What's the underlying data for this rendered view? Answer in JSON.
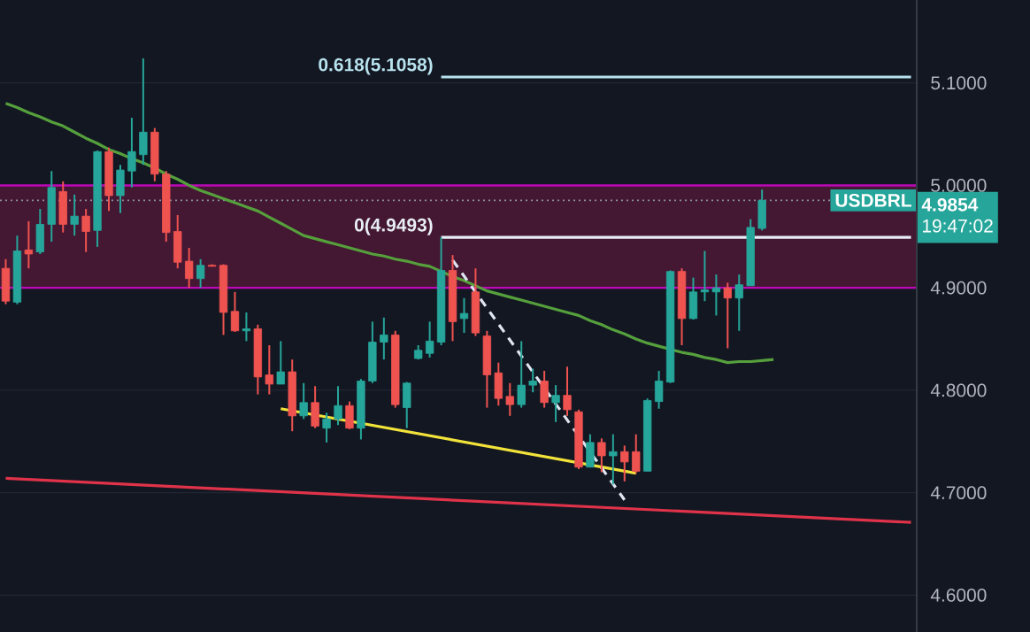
{
  "chart_data": {
    "type": "candlestick",
    "categories": [
      null,
      null,
      null,
      null,
      null,
      null,
      null,
      null,
      null,
      null,
      null,
      null,
      null,
      null,
      null,
      null,
      null,
      null,
      null,
      null,
      null,
      null,
      null,
      null,
      null,
      null,
      null,
      null,
      null,
      null,
      null,
      null,
      null,
      null,
      null,
      null,
      null,
      null,
      null,
      null,
      null,
      null,
      null,
      null,
      null,
      null,
      null,
      null,
      null,
      null,
      null,
      null,
      null,
      null,
      null,
      null,
      null,
      null,
      null,
      null,
      null,
      null,
      null,
      null,
      null,
      null,
      null,
      null,
      null,
      null,
      null,
      null,
      null,
      null,
      null,
      null,
      null,
      null,
      null,
      null
    ],
    "ohlc": [
      [
        4.919,
        4.928,
        4.884,
        4.887
      ],
      [
        4.886,
        4.951,
        4.884,
        4.936
      ],
      [
        4.937,
        4.965,
        4.919,
        4.933
      ],
      [
        4.935,
        4.977,
        4.933,
        4.962
      ],
      [
        4.962,
        5.014,
        4.945,
        4.998
      ],
      [
        4.994,
        5.004,
        4.954,
        4.962
      ],
      [
        4.962,
        4.991,
        4.951,
        4.97
      ],
      [
        4.97,
        4.977,
        4.935,
        4.955
      ],
      [
        4.956,
        5.034,
        4.94,
        5.033
      ],
      [
        5.033,
        5.037,
        4.975,
        4.99
      ],
      [
        4.99,
        5.02,
        4.973,
        5.015
      ],
      [
        5.014,
        5.066,
        4.998,
        5.033
      ],
      [
        5.03,
        5.124,
        5.02,
        5.052
      ],
      [
        5.052,
        5.056,
        5.004,
        5.011
      ],
      [
        5.011,
        5.014,
        4.945,
        4.954
      ],
      [
        4.955,
        4.971,
        4.919,
        4.925
      ],
      [
        4.926,
        4.939,
        4.9,
        4.909
      ],
      [
        4.909,
        4.928,
        4.9,
        4.922
      ],
      [
        4.922,
        4.923,
        4.921,
        4.921
      ],
      [
        4.922,
        4.923,
        4.854,
        4.876
      ],
      [
        4.877,
        4.896,
        4.857,
        4.858
      ],
      [
        4.858,
        4.876,
        4.848,
        4.86
      ],
      [
        4.86,
        4.864,
        4.796,
        4.813
      ],
      [
        4.815,
        4.844,
        4.796,
        4.806
      ],
      [
        4.806,
        4.848,
        4.806,
        4.818
      ],
      [
        4.818,
        4.83,
        4.76,
        4.775
      ],
      [
        4.775,
        4.807,
        4.772,
        4.788
      ],
      [
        4.788,
        4.804,
        4.763,
        4.765
      ],
      [
        4.763,
        4.778,
        4.749,
        4.772
      ],
      [
        4.772,
        4.804,
        4.766,
        4.785
      ],
      [
        4.785,
        4.789,
        4.762,
        4.763
      ],
      [
        4.763,
        4.811,
        4.752,
        4.809
      ],
      [
        4.809,
        4.867,
        4.807,
        4.847
      ],
      [
        4.847,
        4.871,
        4.83,
        4.854
      ],
      [
        4.854,
        4.858,
        4.783,
        4.786
      ],
      [
        4.783,
        4.808,
        4.763,
        4.807
      ],
      [
        4.831,
        4.844,
        4.83,
        4.839
      ],
      [
        4.836,
        4.867,
        4.832,
        4.848
      ],
      [
        4.847,
        4.9493,
        4.844,
        4.917
      ],
      [
        4.917,
        4.932,
        4.848,
        4.867
      ],
      [
        4.87,
        4.89,
        4.856,
        4.875
      ],
      [
        4.896,
        4.919,
        4.853,
        4.856
      ],
      [
        4.853,
        4.858,
        4.783,
        4.815
      ],
      [
        4.817,
        4.827,
        4.785,
        4.792
      ],
      [
        4.794,
        4.807,
        4.775,
        4.786
      ],
      [
        4.786,
        4.848,
        4.783,
        4.805
      ],
      [
        4.805,
        4.821,
        4.798,
        4.809
      ],
      [
        4.809,
        4.819,
        4.783,
        4.788
      ],
      [
        4.788,
        4.805,
        4.769,
        4.795
      ],
      [
        4.795,
        4.823,
        4.775,
        4.781
      ],
      [
        4.779,
        4.781,
        4.723,
        4.725
      ],
      [
        4.725,
        4.757,
        4.725,
        4.749
      ],
      [
        4.749,
        4.753,
        4.72,
        4.736
      ],
      [
        4.736,
        4.757,
        4.708,
        4.74
      ],
      [
        4.74,
        4.746,
        4.711,
        4.73
      ],
      [
        4.74,
        4.757,
        4.719,
        4.721
      ],
      [
        4.721,
        4.792,
        4.721,
        4.79
      ],
      [
        4.789,
        4.819,
        4.782,
        4.809
      ],
      [
        4.808,
        4.917,
        4.807,
        4.916
      ],
      [
        4.916,
        4.919,
        4.844,
        4.87
      ],
      [
        4.87,
        4.91,
        4.869,
        4.896
      ],
      [
        4.896,
        4.936,
        4.887,
        4.898
      ],
      [
        4.896,
        4.913,
        4.873,
        4.9
      ],
      [
        4.9,
        4.905,
        4.841,
        4.89
      ],
      [
        4.89,
        4.913,
        4.858,
        4.903
      ],
      [
        4.902,
        4.967,
        4.902,
        4.959
      ],
      [
        4.958,
        4.996,
        4.956,
        4.9854
      ],
      null,
      null,
      null,
      null,
      null,
      null,
      null,
      null,
      null,
      null,
      null,
      null,
      null
    ],
    "series": [
      {
        "type": "line",
        "color": "#55a03c",
        "values": [
          5.08,
          5.076,
          5.071,
          5.067,
          5.062,
          5.058,
          5.052,
          5.046,
          5.041,
          5.035,
          5.031,
          5.026,
          5.022,
          5.017,
          5.011,
          5.006,
          5.0,
          4.995,
          4.991,
          4.987,
          4.983,
          4.979,
          4.975,
          4.969,
          4.963,
          4.957,
          4.951,
          4.948,
          4.945,
          4.942,
          4.939,
          4.936,
          4.933,
          4.931,
          4.928,
          4.926,
          4.923,
          4.921,
          4.916,
          4.911,
          4.907,
          4.902,
          4.897,
          4.894,
          4.891,
          4.888,
          4.885,
          4.882,
          4.879,
          4.876,
          4.873,
          4.868,
          4.864,
          4.859,
          4.855,
          4.85,
          4.846,
          4.843,
          4.84,
          4.837,
          4.835,
          4.832,
          4.83,
          4.827,
          4.828,
          4.828,
          4.829,
          4.83,
          null,
          null,
          null,
          null,
          null,
          null,
          null,
          null,
          null,
          null,
          null,
          null
        ]
      },
      {
        "type": "line",
        "color": "#f2e33a",
        "values": [
          null,
          null,
          null,
          null,
          null,
          null,
          null,
          null,
          null,
          null,
          null,
          null,
          null,
          null,
          null,
          null,
          null,
          null,
          null,
          null,
          null,
          null,
          null,
          null,
          4.782,
          null,
          null,
          null,
          null,
          null,
          null,
          null,
          null,
          null,
          null,
          null,
          null,
          null,
          null,
          null,
          null,
          null,
          null,
          null,
          null,
          null,
          null,
          null,
          null,
          null,
          null,
          null,
          null,
          null,
          null,
          4.719,
          null,
          null,
          null,
          null,
          null,
          null,
          null,
          null,
          null,
          null,
          null,
          null,
          null,
          null,
          null,
          null,
          null,
          null,
          null,
          null,
          null,
          null,
          null,
          null
        ]
      },
      {
        "type": "line",
        "color": "#dfe6f2",
        "line_style": "dashed",
        "values": [
          null,
          null,
          null,
          null,
          null,
          null,
          null,
          null,
          null,
          null,
          null,
          null,
          null,
          null,
          null,
          null,
          null,
          null,
          null,
          null,
          null,
          null,
          null,
          null,
          null,
          null,
          null,
          null,
          null,
          null,
          null,
          null,
          null,
          null,
          null,
          null,
          null,
          null,
          null,
          4.927,
          null,
          null,
          null,
          null,
          null,
          null,
          null,
          null,
          null,
          null,
          null,
          null,
          null,
          null,
          4.693,
          null,
          null,
          null,
          null,
          null,
          null,
          null,
          null,
          null,
          null,
          null,
          null,
          null,
          null,
          null,
          null,
          null,
          null,
          null,
          null,
          null,
          null,
          null,
          null,
          null
        ]
      },
      {
        "type": "line",
        "color": "#e0334a",
        "values": [
          4.714,
          null,
          null,
          null,
          null,
          null,
          null,
          null,
          null,
          null,
          null,
          null,
          null,
          null,
          null,
          null,
          null,
          null,
          null,
          null,
          null,
          null,
          null,
          null,
          null,
          null,
          null,
          null,
          null,
          null,
          null,
          null,
          null,
          null,
          null,
          null,
          null,
          null,
          null,
          null,
          null,
          null,
          null,
          null,
          null,
          null,
          null,
          null,
          null,
          null,
          null,
          null,
          null,
          null,
          null,
          null,
          null,
          null,
          null,
          null,
          null,
          null,
          null,
          null,
          null,
          null,
          null,
          null,
          null,
          null,
          null,
          null,
          null,
          null,
          null,
          null,
          null,
          null,
          null,
          4.671
        ]
      },
      {
        "type": "line",
        "color": "#b7e3ee",
        "values": [
          null,
          null,
          null,
          null,
          null,
          null,
          null,
          null,
          null,
          null,
          null,
          null,
          null,
          null,
          null,
          null,
          null,
          null,
          null,
          null,
          null,
          null,
          null,
          null,
          null,
          null,
          null,
          null,
          null,
          null,
          null,
          null,
          null,
          null,
          null,
          null,
          null,
          null,
          5.1058,
          null,
          null,
          null,
          null,
          null,
          null,
          null,
          null,
          null,
          null,
          null,
          null,
          null,
          null,
          null,
          null,
          null,
          null,
          null,
          null,
          null,
          null,
          null,
          null,
          null,
          null,
          null,
          null,
          null,
          null,
          null,
          null,
          null,
          null,
          null,
          null,
          null,
          null,
          null,
          null,
          5.1058
        ]
      },
      {
        "type": "line",
        "color": "#e8eef5",
        "values": [
          null,
          null,
          null,
          null,
          null,
          null,
          null,
          null,
          null,
          null,
          null,
          null,
          null,
          null,
          null,
          null,
          null,
          null,
          null,
          null,
          null,
          null,
          null,
          null,
          null,
          null,
          null,
          null,
          null,
          null,
          null,
          null,
          null,
          null,
          null,
          null,
          null,
          null,
          4.9493,
          null,
          null,
          null,
          null,
          null,
          null,
          null,
          null,
          null,
          null,
          null,
          null,
          null,
          null,
          null,
          null,
          null,
          null,
          null,
          null,
          null,
          null,
          null,
          null,
          null,
          null,
          null,
          null,
          null,
          null,
          null,
          null,
          null,
          null,
          null,
          null,
          null,
          null,
          null,
          null,
          4.9493
        ]
      }
    ],
    "ylim": [
      4.564,
      5.181
    ],
    "yticks": [
      {
        "value": 4.6,
        "label": "4.6000"
      },
      {
        "value": 4.7,
        "label": "4.7000"
      },
      {
        "value": 4.8,
        "label": "4.8000"
      },
      {
        "value": 4.9,
        "label": "4.9000"
      },
      {
        "value": 5.0,
        "label": "5.0000"
      },
      {
        "value": 5.1,
        "label": "5.1000"
      }
    ],
    "tick_labels": "y",
    "grid": "y",
    "bands": [
      {
        "axis": "y",
        "from": 4.9,
        "to": 5.0,
        "color": "#441732"
      }
    ],
    "ref_lines": [
      {
        "axis": "y",
        "value": 4.9854,
        "label": "4.9854",
        "color": "#8b8f9a",
        "line_style": "dotted"
      }
    ],
    "annotations": [
      "0.618(5.1058)",
      "0(4.9493)",
      "USDBRL",
      "19:47:02"
    ]
  }
}
